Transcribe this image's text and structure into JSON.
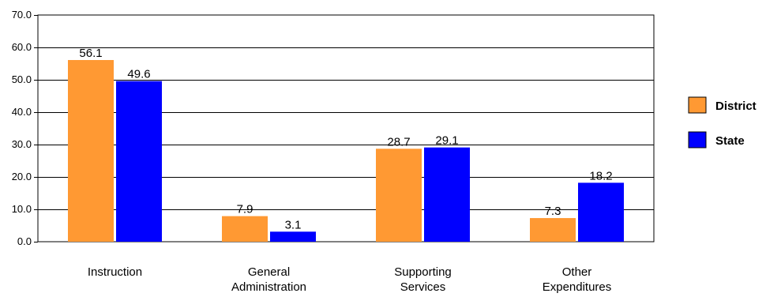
{
  "chart_data": {
    "type": "bar",
    "categories": [
      [
        "Instruction"
      ],
      [
        "General",
        "Administration"
      ],
      [
        "Supporting",
        "Services"
      ],
      [
        "Other",
        "Expenditures"
      ]
    ],
    "series": [
      {
        "name": "District",
        "values": [
          56.1,
          7.9,
          28.7,
          7.3
        ],
        "labels": [
          "56.1",
          "7.9",
          "28.7",
          "7.3"
        ],
        "color": "#FF9933"
      },
      {
        "name": "State",
        "values": [
          49.6,
          3.1,
          29.1,
          18.2
        ],
        "labels": [
          "49.6",
          "3.1",
          "29.1",
          "18.2"
        ],
        "color": "#0000FF"
      }
    ],
    "ylim": [
      0,
      70
    ],
    "yticks": [
      "0.0",
      "10.0",
      "20.0",
      "30.0",
      "40.0",
      "50.0",
      "60.0",
      "70.0"
    ],
    "grid": true,
    "legend_position": "right",
    "title": "",
    "xlabel": "",
    "ylabel": ""
  }
}
